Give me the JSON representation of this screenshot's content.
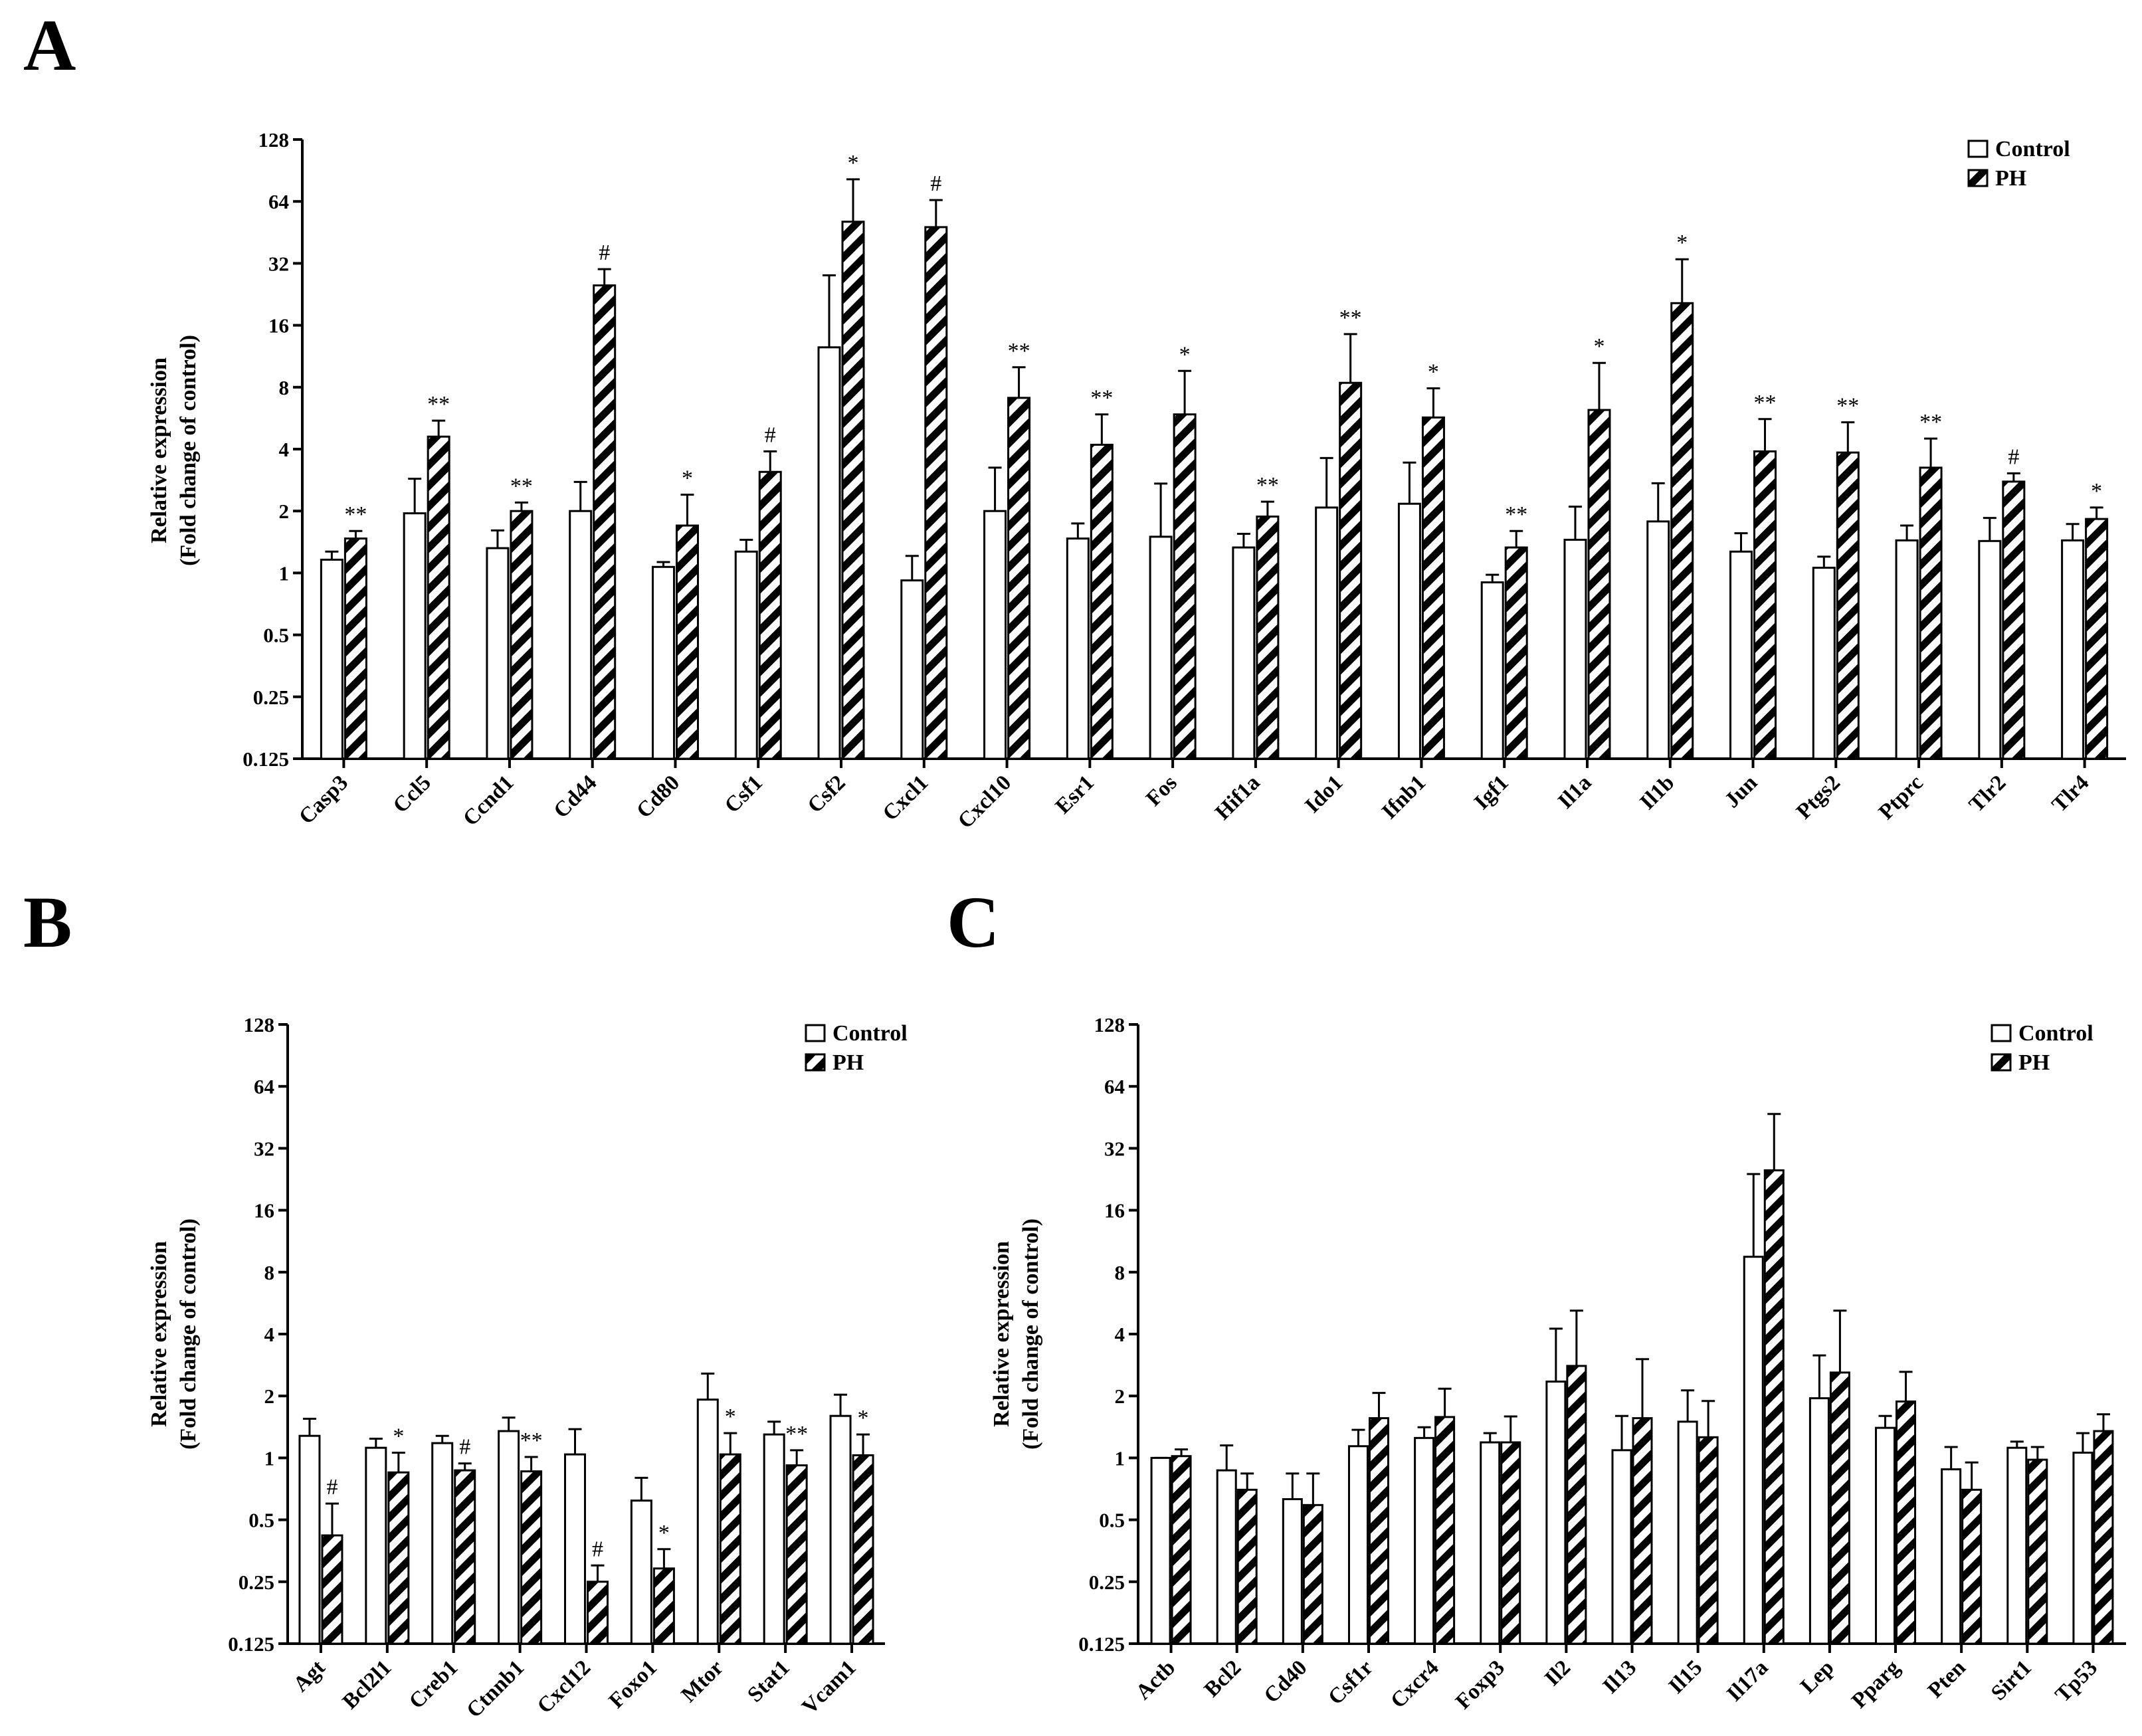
{
  "figure": {
    "panels": [
      "A",
      "B",
      "C"
    ]
  },
  "colors": {
    "control_fill": "#ffffff",
    "ph_fill": "#000000",
    "stroke": "#000000"
  },
  "chart_data": [
    {
      "panel": "A",
      "type": "bar",
      "ylabel_line1": "Relative expression",
      "ylabel_line2": "(Fold change of control)",
      "yscale": "log2",
      "ylim": [
        0.125,
        128
      ],
      "yticks": [
        "128",
        "64",
        "32",
        "16",
        "8",
        "4",
        "2",
        "1",
        "0.5",
        "0.25",
        "0.125"
      ],
      "legend": [
        "Control",
        "PH"
      ],
      "categories": [
        "Casp3",
        "Ccl5",
        "Ccnd1",
        "Cd44",
        "Cd80",
        "Csf1",
        "Csf2",
        "Cxcl1",
        "Cxcl10",
        "Esr1",
        "Fos",
        "Hif1a",
        "Ido1",
        "Ifnb1",
        "Igf1",
        "Il1a",
        "Il1b",
        "Jun",
        "Ptgs2",
        "Ptprc",
        "Tlr2",
        "Tlr4"
      ],
      "series": [
        {
          "name": "Control",
          "values": [
            1.16,
            1.95,
            1.32,
            2.0,
            1.07,
            1.27,
            12.5,
            0.92,
            2.0,
            1.47,
            1.5,
            1.33,
            2.08,
            2.17,
            0.9,
            1.45,
            1.78,
            1.27,
            1.06,
            1.44,
            1.43,
            1.44
          ],
          "errors": [
            1.27,
            2.87,
            1.61,
            2.77,
            1.13,
            1.45,
            28.0,
            1.21,
            3.25,
            1.74,
            2.72,
            1.55,
            3.62,
            3.44,
            0.98,
            2.1,
            2.73,
            1.56,
            1.2,
            1.7,
            1.85,
            1.73
          ]
        },
        {
          "name": "PH",
          "values": [
            1.47,
            4.6,
            2.0,
            25.0,
            1.7,
            3.1,
            51.0,
            48.0,
            7.1,
            4.2,
            5.9,
            1.88,
            8.4,
            5.7,
            1.33,
            6.2,
            20.5,
            3.9,
            3.85,
            3.25,
            2.78,
            1.83
          ],
          "errors": [
            1.6,
            5.5,
            2.2,
            30.0,
            2.4,
            3.9,
            82.0,
            65.0,
            10.0,
            5.9,
            9.6,
            2.22,
            14.5,
            7.9,
            1.6,
            10.5,
            33.5,
            5.6,
            5.4,
            4.5,
            3.05,
            2.08
          ]
        }
      ],
      "significance": [
        "**",
        "**",
        "**",
        "#",
        "*",
        "#",
        "*",
        "#",
        "**",
        "**",
        "*",
        "**",
        "**",
        "*",
        "**",
        "*",
        "*",
        "**",
        "**",
        "**",
        "#",
        "*"
      ]
    },
    {
      "panel": "B",
      "type": "bar",
      "ylabel_line1": "Relative expression",
      "ylabel_line2": "(Fold change of control)",
      "yscale": "log2",
      "ylim": [
        0.125,
        128
      ],
      "yticks": [
        "128",
        "64",
        "32",
        "16",
        "8",
        "4",
        "2",
        "1",
        "0.5",
        "0.25",
        "0.125"
      ],
      "legend": [
        "Control",
        "PH"
      ],
      "categories": [
        "Agt",
        "Bcl2l1",
        "Creb1",
        "Ctnnb1",
        "Cxcl12",
        "Foxo1",
        "Mtor",
        "Stat1",
        "Vcam1"
      ],
      "series": [
        {
          "name": "Control",
          "values": [
            1.28,
            1.12,
            1.18,
            1.35,
            1.04,
            0.62,
            1.92,
            1.3,
            1.6
          ],
          "errors": [
            1.55,
            1.24,
            1.28,
            1.57,
            1.38,
            0.8,
            2.57,
            1.5,
            2.03
          ]
        },
        {
          "name": "PH",
          "values": [
            0.42,
            0.85,
            0.87,
            0.86,
            0.25,
            0.29,
            1.04,
            0.92,
            1.03
          ],
          "errors": [
            0.6,
            1.06,
            0.94,
            1.01,
            0.3,
            0.36,
            1.32,
            1.09,
            1.3
          ]
        }
      ],
      "significance": [
        "#",
        "*",
        "#",
        "**",
        "#",
        "*",
        "*",
        "**",
        "*"
      ]
    },
    {
      "panel": "C",
      "type": "bar",
      "ylabel_line1": "Relative expression",
      "ylabel_line2": "(Fold change of control)",
      "yscale": "log2",
      "ylim": [
        0.125,
        128
      ],
      "yticks": [
        "128",
        "64",
        "32",
        "16",
        "8",
        "4",
        "2",
        "1",
        "0.5",
        "0.25",
        "0.125"
      ],
      "legend": [
        "Control",
        "PH"
      ],
      "categories": [
        "Actb",
        "Bcl2",
        "Cd40",
        "Csf1r",
        "Cxcr4",
        "Foxp3",
        "Il2",
        "Il13",
        "Il15",
        "Il17a",
        "Lep",
        "Pparg",
        "Pten",
        "Sirt1",
        "Tp53"
      ],
      "series": [
        {
          "name": "Control",
          "values": [
            1.0,
            0.87,
            0.63,
            1.14,
            1.25,
            1.19,
            2.35,
            1.09,
            1.5,
            9.5,
            1.95,
            1.4,
            0.88,
            1.12,
            1.06
          ],
          "errors": [
            1.0,
            1.15,
            0.84,
            1.37,
            1.41,
            1.32,
            4.25,
            1.6,
            2.13,
            24.0,
            3.15,
            1.6,
            1.13,
            1.2,
            1.32
          ]
        },
        {
          "name": "PH",
          "values": [
            1.02,
            0.7,
            0.59,
            1.56,
            1.58,
            1.19,
            2.8,
            1.56,
            1.26,
            25.0,
            2.6,
            1.88,
            0.7,
            0.98,
            1.35
          ],
          "errors": [
            1.1,
            0.84,
            0.84,
            2.07,
            2.17,
            1.59,
            5.2,
            3.02,
            1.89,
            47.0,
            5.2,
            2.62,
            0.95,
            1.13,
            1.63
          ]
        }
      ],
      "significance": []
    }
  ]
}
